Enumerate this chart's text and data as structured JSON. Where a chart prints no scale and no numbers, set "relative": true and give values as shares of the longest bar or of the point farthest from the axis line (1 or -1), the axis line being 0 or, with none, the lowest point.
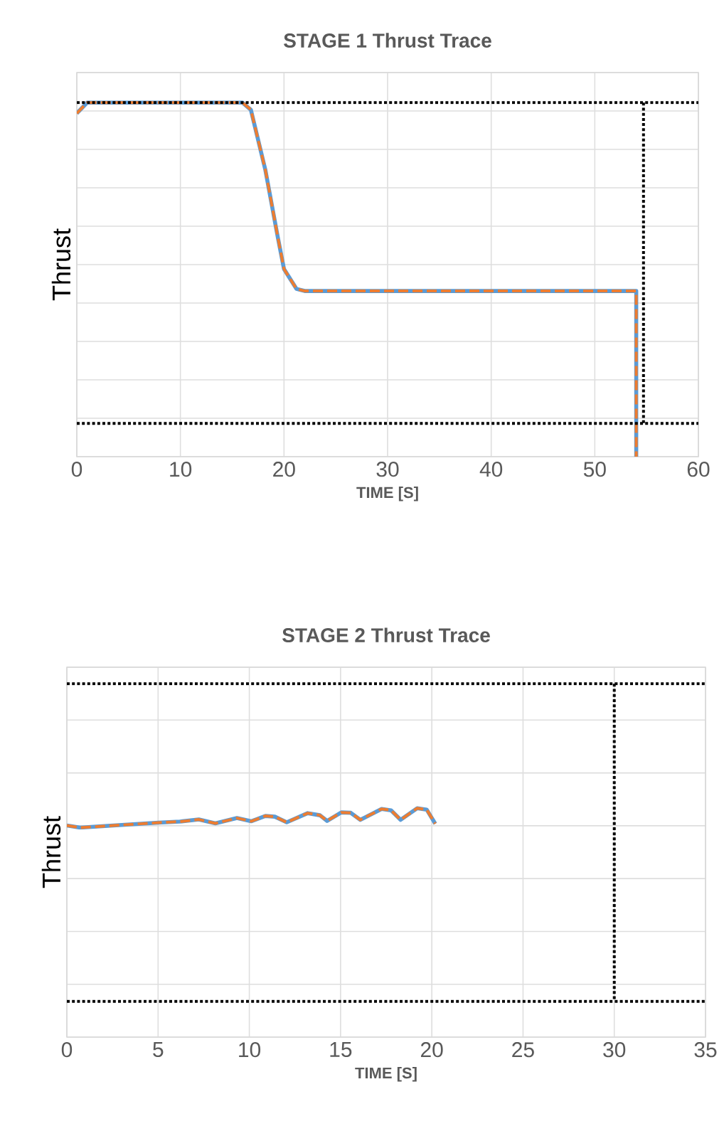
{
  "chart_data": [
    {
      "type": "line",
      "title": "STAGE 1 Thrust Trace",
      "xlabel": "TIME [S]",
      "ylabel": "Thrust",
      "xlim": [
        0,
        60
      ],
      "xticks": [
        0,
        10,
        20,
        30,
        40,
        50,
        60
      ],
      "relative": true,
      "grid": true,
      "tick_labels": "x",
      "series": [
        {
          "color": "#5b9bd5",
          "line_style": "solid",
          "x": [
            0,
            1,
            16,
            16.8,
            18.2,
            19.4,
            20.0,
            21.2,
            22,
            54.0,
            54.0
          ],
          "values": [
            0.97,
            1,
            1,
            0.98,
            0.81,
            0.62,
            0.53,
            0.474,
            0.468,
            0.468,
            0
          ]
        },
        {
          "color": "#ed7d31",
          "line_style": "dashed",
          "x": [
            0,
            1,
            16,
            16.8,
            18.2,
            19.4,
            20.0,
            21.2,
            22,
            54.0,
            54.0
          ],
          "values": [
            0.97,
            1,
            1,
            0.98,
            0.81,
            0.62,
            0.53,
            0.474,
            0.468,
            0.468,
            0
          ]
        },
        {
          "color": "#000000",
          "line_style": "dotted",
          "x": [
            54.7,
            54.7
          ],
          "values": [
            1,
            0.094
          ]
        }
      ],
      "ref_lines": [
        {
          "axis": "y",
          "value": 1,
          "color": "#000000",
          "line_style": "dotted"
        },
        {
          "axis": "y",
          "value": 0.094,
          "color": "#000000",
          "line_style": "dotted"
        }
      ]
    },
    {
      "type": "line",
      "title": "STAGE 2 Thrust Trace",
      "xlabel": "TIME [S]",
      "ylabel": "Thrust",
      "xlim": [
        0,
        35
      ],
      "xticks": [
        0,
        5,
        10,
        15,
        20,
        25,
        30,
        35
      ],
      "relative": true,
      "grid": true,
      "tick_labels": "x",
      "series": [
        {
          "color": "#5b9bd5",
          "line_style": "solid",
          "x": [
            0,
            0.73,
            2.55,
            5.02,
            6.19,
            7.23,
            8.14,
            9.32,
            10.1,
            10.88,
            11.4,
            12.05,
            13.2,
            13.87,
            14.26,
            15.04,
            15.56,
            16.08,
            17.25,
            17.77,
            18.29,
            19.2,
            19.72,
            20.19
          ],
          "values": [
            0.599,
            0.593,
            0.599,
            0.607,
            0.61,
            0.616,
            0.605,
            0.62,
            0.611,
            0.626,
            0.624,
            0.608,
            0.634,
            0.628,
            0.612,
            0.636,
            0.635,
            0.615,
            0.646,
            0.642,
            0.615,
            0.648,
            0.644,
            0.604
          ]
        },
        {
          "color": "#ed7d31",
          "line_style": "dashed",
          "x": [
            0,
            0.73,
            2.55,
            5.02,
            6.19,
            7.23,
            8.14,
            9.32,
            10.1,
            10.88,
            11.4,
            12.05,
            13.2,
            13.87,
            14.26,
            15.04,
            15.56,
            16.08,
            17.25,
            17.77,
            18.29,
            19.2,
            19.72,
            20.19
          ],
          "values": [
            0.599,
            0.593,
            0.599,
            0.607,
            0.61,
            0.616,
            0.605,
            0.62,
            0.611,
            0.626,
            0.624,
            0.608,
            0.634,
            0.628,
            0.612,
            0.636,
            0.635,
            0.615,
            0.646,
            0.642,
            0.615,
            0.648,
            0.644,
            0.604
          ]
        },
        {
          "color": "#000000",
          "line_style": "dotted",
          "x": [
            30,
            30
          ],
          "values": [
            1,
            0.101
          ]
        }
      ],
      "ref_lines": [
        {
          "axis": "y",
          "value": 1,
          "color": "#000000",
          "line_style": "dotted"
        },
        {
          "axis": "y",
          "value": 0.101,
          "color": "#000000",
          "line_style": "dotted"
        }
      ]
    }
  ]
}
